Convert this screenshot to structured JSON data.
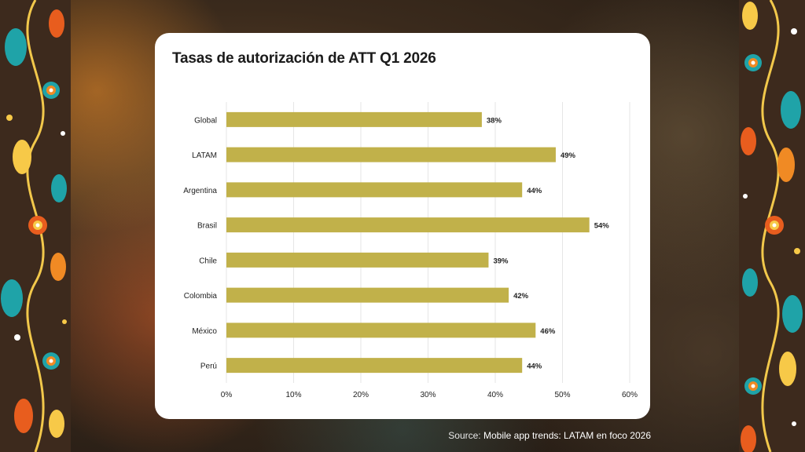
{
  "slide": {
    "title": "Tasas de autorización de ATT Q1 2026",
    "source_label": "Source:",
    "source_name": "Mobile app trends: LATAM en foco 2026"
  },
  "colors": {
    "bar": "#c1b14a",
    "grid": "#e6e6e6",
    "text": "#222222",
    "card": "#ffffff"
  },
  "chart_data": {
    "type": "bar",
    "orientation": "horizontal",
    "title": "Tasas de autorización de ATT Q1 2026",
    "xlabel": "",
    "ylabel": "",
    "categories": [
      "Global",
      "LATAM",
      "Argentina",
      "Brasil",
      "Chile",
      "Colombia",
      "México",
      "Perú"
    ],
    "values": [
      38,
      49,
      44,
      54,
      39,
      42,
      46,
      44
    ],
    "value_labels": [
      "38%",
      "49%",
      "44%",
      "54%",
      "39%",
      "42%",
      "46%",
      "44%"
    ],
    "xlim": [
      0,
      60
    ],
    "x_ticks": [
      0,
      10,
      20,
      30,
      40,
      50,
      60
    ],
    "x_tick_labels": [
      "0%",
      "10%",
      "20%",
      "30%",
      "40%",
      "50%",
      "60%"
    ],
    "grid": "vertical",
    "legend": "none"
  }
}
